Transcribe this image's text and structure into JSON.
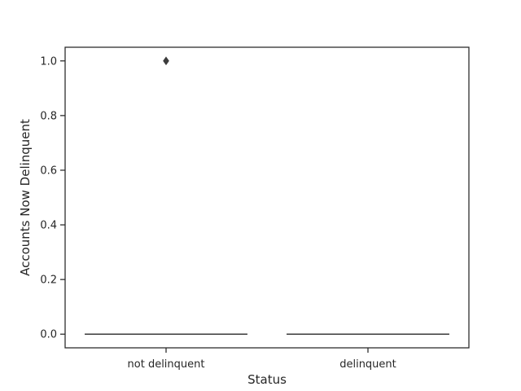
{
  "chart_data": {
    "type": "box",
    "title": "",
    "xlabel": "Status",
    "ylabel": "Accounts Now Delinquent",
    "categories": [
      "not delinquent",
      "delinquent"
    ],
    "ylim": [
      -0.05,
      1.05
    ],
    "yticks": [
      0.0,
      0.2,
      0.4,
      0.6,
      0.8,
      1.0
    ],
    "ytick_labels": [
      "0.0",
      "0.2",
      "0.4",
      "0.6",
      "0.8",
      "1.0"
    ],
    "boxes": [
      {
        "category": "not delinquent",
        "min": 0.0,
        "q1": 0.0,
        "median": 0.0,
        "q3": 0.0,
        "max": 0.0,
        "outliers": [
          1.0
        ]
      },
      {
        "category": "delinquent",
        "min": 0.0,
        "q1": 0.0,
        "median": 0.0,
        "q3": 0.0,
        "max": 0.0,
        "outliers": []
      }
    ],
    "colors": {
      "box_line": "#3d3d3d",
      "axis": "#262626"
    },
    "grid": false,
    "legend": "none"
  }
}
